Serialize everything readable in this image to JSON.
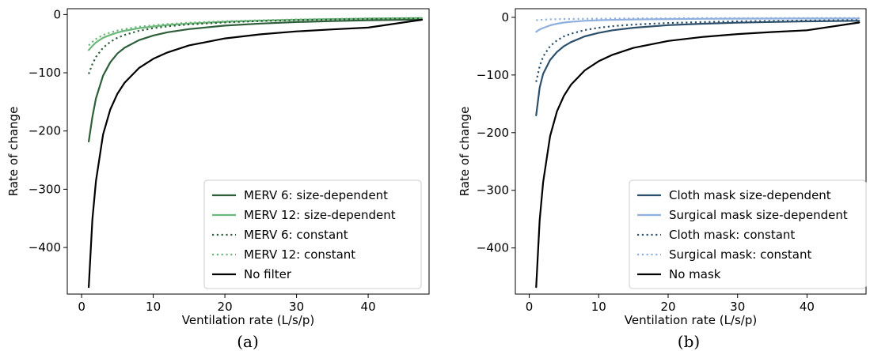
{
  "chart_data": [
    {
      "type": "line",
      "caption": "(a)",
      "xlabel": "Ventilation rate (L/s/p)",
      "ylabel": "Rate of change",
      "xlim": [
        -2,
        48.5
      ],
      "ylim": [
        -480,
        10
      ],
      "xticks": [
        0,
        10,
        20,
        30,
        40
      ],
      "yticks": [
        0,
        -100,
        -200,
        -300,
        -400
      ],
      "xtick_labels": [
        "0",
        "10",
        "20",
        "30",
        "40"
      ],
      "ytick_labels": [
        "0",
        "−100",
        "−200",
        "−300",
        "−400"
      ],
      "grid": false,
      "legend_position": "lower-right",
      "x": [
        1,
        1.5,
        2,
        3,
        4,
        5,
        6,
        8,
        10,
        12,
        15,
        20,
        25,
        30,
        35,
        40,
        47.5
      ],
      "series": [
        {
          "name": "MERV 6: size-dependent",
          "color": "#2e5e3a",
          "dash": "solid",
          "values": [
            -218,
            -176,
            -144,
            -105,
            -82,
            -67,
            -57,
            -44,
            -36,
            -30.5,
            -25,
            -19,
            -15.5,
            -13,
            -11.3,
            -10,
            -8.5
          ]
        },
        {
          "name": "MERV 12: size-dependent",
          "color": "#6cb87a",
          "dash": "solid",
          "values": [
            -61,
            -54,
            -48,
            -40,
            -35,
            -31,
            -28,
            -23.5,
            -20.5,
            -18,
            -15.5,
            -12.5,
            -10.5,
            -9,
            -7.9,
            -7,
            -6
          ]
        },
        {
          "name": "MERV 6: constant",
          "color": "#2e5e3a",
          "dash": "dotted",
          "values": [
            -102,
            -85,
            -73,
            -57,
            -47,
            -40,
            -35,
            -28,
            -23.5,
            -20.3,
            -17,
            -13.5,
            -11.2,
            -9.6,
            -8.4,
            -7.6,
            -6.6
          ]
        },
        {
          "name": "MERV 12: constant",
          "color": "#6cb87a",
          "dash": "dotted",
          "values": [
            -53,
            -47,
            -42,
            -35,
            -31,
            -27.5,
            -25,
            -21,
            -18.5,
            -16.3,
            -14,
            -11.5,
            -9.8,
            -8.5,
            -7.5,
            -6.7,
            -5.8
          ]
        },
        {
          "name": "No filter",
          "color": "#000000",
          "dash": "solid",
          "values": [
            -468,
            -352,
            -286,
            -206,
            -163,
            -136,
            -117,
            -92,
            -76,
            -65,
            -53,
            -41,
            -34,
            -29,
            -25.5,
            -22.5,
            -9
          ]
        }
      ]
    },
    {
      "type": "line",
      "caption": "(b)",
      "xlabel": "Ventilation rate (L/s/p)",
      "ylabel": "Rate of change",
      "xlim": [
        -2,
        48.5
      ],
      "ylim": [
        -480,
        15
      ],
      "xticks": [
        0,
        10,
        20,
        30,
        40
      ],
      "yticks": [
        0,
        -100,
        -200,
        -300,
        -400
      ],
      "xtick_labels": [
        "0",
        "10",
        "20",
        "30",
        "40"
      ],
      "ytick_labels": [
        "0",
        "−100",
        "−200",
        "−300",
        "−400"
      ],
      "grid": false,
      "legend_position": "lower-right",
      "x": [
        1,
        1.5,
        2,
        3,
        4,
        5,
        6,
        8,
        10,
        12,
        15,
        20,
        25,
        30,
        35,
        40,
        47.5
      ],
      "series": [
        {
          "name": "Cloth mask size-dependent",
          "color": "#2c4f6b",
          "dash": "solid",
          "values": [
            -170,
            -122,
            -98,
            -74,
            -60,
            -50,
            -43,
            -33,
            -27,
            -22.5,
            -18,
            -13.5,
            -11,
            -9.3,
            -8,
            -7,
            -6
          ]
        },
        {
          "name": "Surgical mask size-dependent",
          "color": "#8fb0de",
          "dash": "solid",
          "values": [
            -25,
            -21,
            -18.5,
            -14,
            -11,
            -9,
            -7.8,
            -6,
            -5,
            -4.3,
            -3.6,
            -3,
            -2.6,
            -2.3,
            -2.1,
            -2,
            -1.8
          ]
        },
        {
          "name": "Cloth mask: constant",
          "color": "#2c4f6b",
          "dash": "dotted",
          "values": [
            -112,
            -85,
            -68,
            -50,
            -40,
            -33,
            -28.5,
            -22,
            -18,
            -15.3,
            -12.5,
            -9.8,
            -8.2,
            -7,
            -6.2,
            -5.6,
            -4.8
          ]
        },
        {
          "name": "Surgical mask: constant",
          "color": "#8fb0de",
          "dash": "dotted",
          "values": [
            -5,
            -4.5,
            -4,
            -3.5,
            -3.2,
            -3,
            -2.8,
            -2.5,
            -2.3,
            -2.1,
            -1.9,
            -1.7,
            -1.5,
            -1.4,
            -1.3,
            -1.2,
            -1.1
          ]
        },
        {
          "name": "No mask",
          "color": "#000000",
          "dash": "solid",
          "values": [
            -468,
            -352,
            -286,
            -206,
            -163,
            -136,
            -117,
            -92,
            -76,
            -65,
            -53,
            -41,
            -34,
            -29,
            -25.5,
            -22.5,
            -9
          ]
        }
      ]
    }
  ]
}
